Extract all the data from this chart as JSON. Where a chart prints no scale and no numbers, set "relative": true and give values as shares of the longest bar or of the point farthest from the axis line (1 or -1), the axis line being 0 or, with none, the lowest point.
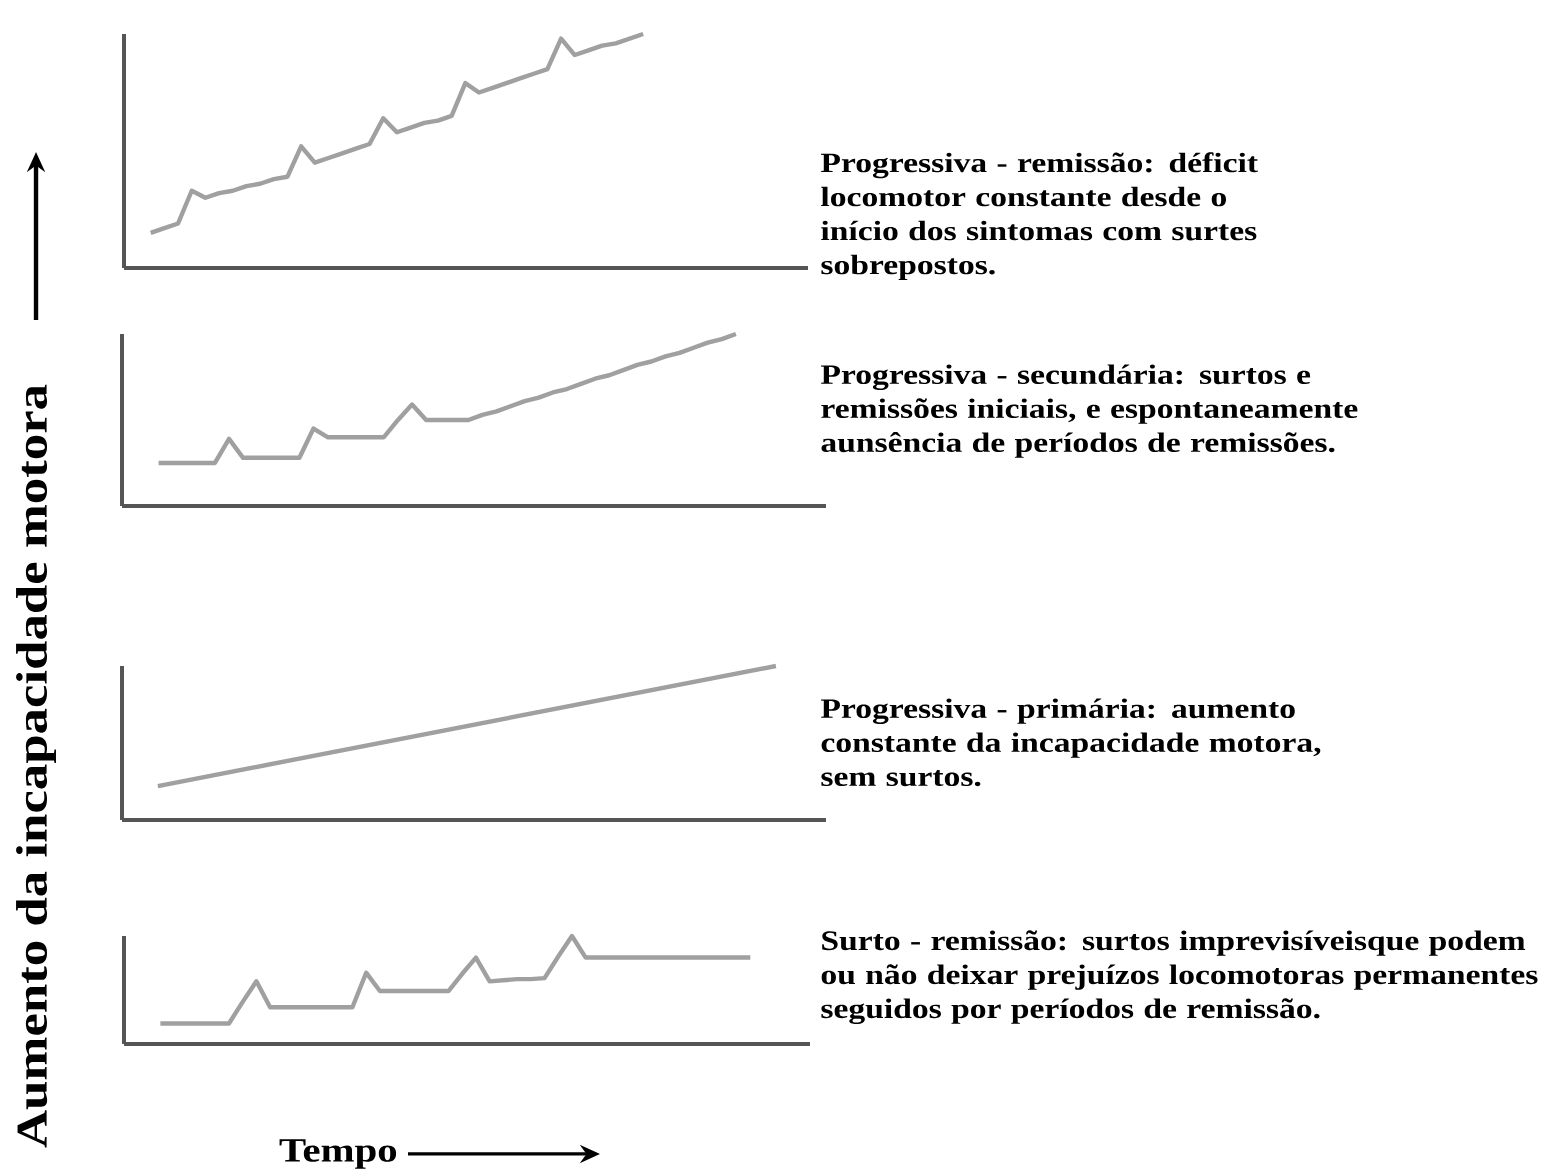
{
  "chart_data": [
    {
      "type": "line",
      "relative": true,
      "color": "#a0a0a0",
      "annotations": [
        "Progressiva - remissão: déficit locomotor constante desde o início dos sintomas com surtes sobrepostos."
      ],
      "categories": [
        null,
        null,
        null,
        null,
        null,
        null,
        null,
        null,
        null,
        null,
        null,
        null,
        null,
        null,
        null,
        null,
        null,
        null,
        null,
        null,
        null,
        null,
        null,
        null,
        null,
        null,
        null,
        null,
        null,
        null,
        null,
        null,
        null,
        null,
        null,
        null,
        null
      ],
      "values": [
        0.15,
        0.17,
        0.19,
        0.33,
        0.3,
        0.32,
        0.33,
        0.35,
        0.36,
        0.38,
        0.39,
        0.52,
        0.45,
        0.47,
        0.49,
        0.51,
        0.53,
        0.64,
        0.58,
        0.6,
        0.62,
        0.63,
        0.65,
        0.79,
        0.75,
        0.77,
        0.79,
        0.81,
        0.83,
        0.85,
        0.98,
        0.91,
        0.93,
        0.95,
        0.96,
        0.98,
        1
      ]
    },
    {
      "type": "line",
      "relative": true,
      "color": "#a0a0a0",
      "annotations": [
        "Progressiva - secundária: surtos e remissões iniciais, e espontaneamente aunsência de períodos de remissões."
      ],
      "categories": [
        null,
        null,
        null,
        null,
        null,
        null,
        null,
        null,
        null,
        null,
        null,
        null,
        null,
        null,
        null,
        null,
        null,
        null,
        null,
        null,
        null,
        null,
        null,
        null,
        null,
        null,
        null,
        null,
        null,
        null,
        null,
        null,
        null,
        null,
        null,
        null,
        null,
        null,
        null,
        null,
        null,
        null
      ],
      "values": [
        0.25,
        0.25,
        0.25,
        0.25,
        0.25,
        0.39,
        0.28,
        0.28,
        0.28,
        0.28,
        0.28,
        0.45,
        0.4,
        0.4,
        0.4,
        0.4,
        0.4,
        0.5,
        0.59,
        0.5,
        0.5,
        0.5,
        0.5,
        0.53,
        0.55,
        0.58,
        0.61,
        0.63,
        0.66,
        0.68,
        0.71,
        0.74,
        0.76,
        0.79,
        0.82,
        0.84,
        0.87,
        0.89,
        0.92,
        0.95,
        0.97,
        1
      ]
    },
    {
      "type": "line",
      "relative": true,
      "color": "#a0a0a0",
      "annotations": [
        "Progressiva - primária: aumento constante da incapacidade motora, sem surtos."
      ],
      "categories": [
        null,
        null
      ],
      "values": [
        0.22,
        1
      ]
    },
    {
      "type": "line",
      "relative": true,
      "color": "#a0a0a0",
      "xlabel": "Tempo",
      "ylabel": "Aumento da incapacidade motora",
      "annotations": [
        "Surto - remissão: surtos imprevisíveisque podem ou não deixar prejuízos locomotoras permanentes seguidos por períodos de remissão."
      ],
      "categories": [
        null,
        null,
        null,
        null,
        null,
        null,
        null,
        null,
        null,
        null,
        null,
        null,
        null,
        null,
        null,
        null,
        null,
        null,
        null,
        null,
        null,
        null,
        null,
        null,
        null,
        null,
        null,
        null,
        null,
        null,
        null,
        null,
        null,
        null,
        null,
        null,
        null,
        null,
        null,
        null,
        null,
        null,
        null,
        null
      ],
      "values": [
        0.19,
        0.19,
        0.19,
        0.19,
        0.19,
        0.19,
        0.39,
        0.58,
        0.34,
        0.34,
        0.34,
        0.34,
        0.34,
        0.34,
        0.34,
        0.66,
        0.49,
        0.49,
        0.49,
        0.49,
        0.49,
        0.49,
        0.65,
        0.8,
        0.58,
        0.59,
        0.6,
        0.6,
        0.61,
        0.81,
        1,
        0.8,
        0.8,
        0.8,
        0.8,
        0.8,
        0.8,
        0.8,
        0.8,
        0.8,
        0.8,
        0.8,
        0.8,
        0.8
      ]
    }
  ]
}
